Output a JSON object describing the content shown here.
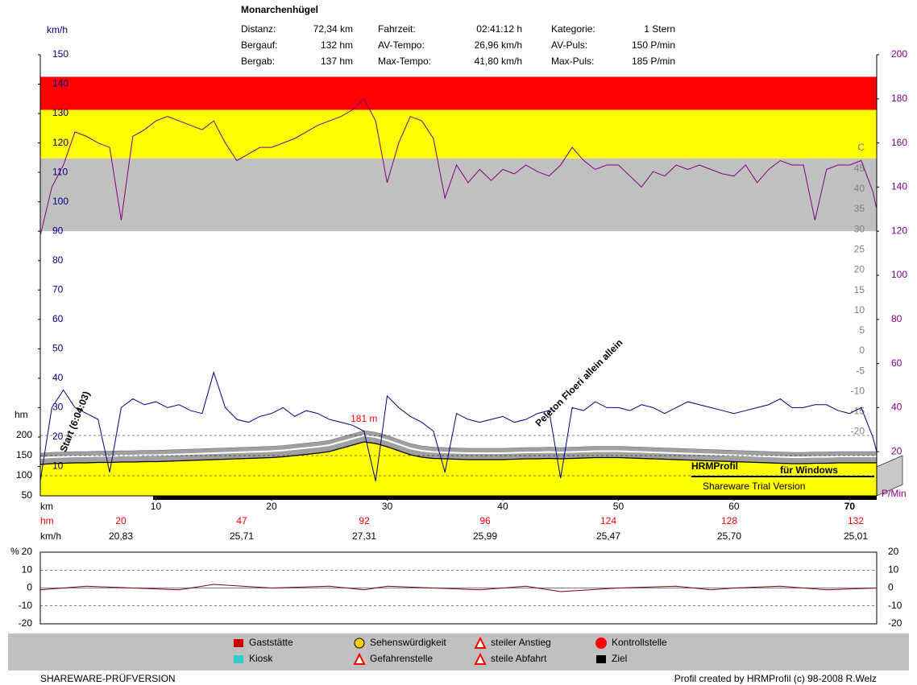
{
  "chart_data": [
    {
      "type": "line",
      "title": "Monarchenhügel",
      "stats": [
        {
          "label": "Distanz:",
          "value": "72,34 km"
        },
        {
          "label": "Bergauf:",
          "value": "132 hm"
        },
        {
          "label": "Bergab:",
          "value": "137 hm"
        },
        {
          "label": "Fahrzeit:",
          "value": "02:41:12 h"
        },
        {
          "label": "AV-Tempo:",
          "value": "26,96 km/h"
        },
        {
          "label": "Max-Tempo:",
          "value": "41,80 km/h"
        },
        {
          "label": "Kategorie:",
          "value": "1 Stern"
        },
        {
          "label": "AV-Puls:",
          "value": "150 P/min"
        },
        {
          "label": "Max-Puls:",
          "value": "185 P/min"
        }
      ],
      "xlabel": "km",
      "xlim": [
        0,
        72.34
      ],
      "xticks": [
        10,
        20,
        30,
        40,
        50,
        60,
        70
      ],
      "ylabel": "km/h",
      "ylim": [
        0,
        150
      ],
      "yticks": [
        10,
        20,
        30,
        40,
        50,
        60,
        70,
        80,
        90,
        100,
        110,
        120,
        130,
        140,
        150
      ],
      "y2label": "P/Min",
      "y2lim": [
        0,
        200
      ],
      "y2ticks": [
        20,
        40,
        60,
        80,
        100,
        120,
        140,
        160,
        180,
        200
      ],
      "y3label": "hm",
      "y3lim": [
        50,
        1146
      ],
      "y3ticks": [
        50,
        100,
        150,
        200
      ],
      "y4label": "C",
      "y4lim": [
        -35.8,
        73.2
      ],
      "y4ticks": [
        -20,
        -15,
        -10,
        -5,
        0,
        5,
        10,
        15,
        20,
        25,
        30,
        35,
        40,
        45
      ],
      "zones": [
        {
          "from": 120,
          "to": 153,
          "color": "#c0c0c0"
        },
        {
          "from": 153,
          "to": 175,
          "color": "#ffff00"
        },
        {
          "from": 175,
          "to": 190,
          "color": "#ff0000"
        }
      ],
      "x": [
        0,
        1,
        2,
        3,
        4,
        5,
        6,
        7,
        8,
        9,
        10,
        11,
        12,
        13,
        14,
        15,
        16,
        17,
        18,
        19,
        20,
        21,
        22,
        23,
        24,
        25,
        26,
        27,
        28,
        29,
        30,
        31,
        32,
        33,
        34,
        35,
        36,
        37,
        38,
        39,
        40,
        41,
        42,
        43,
        44,
        45,
        46,
        47,
        48,
        49,
        50,
        51,
        52,
        53,
        54,
        55,
        56,
        57,
        58,
        59,
        60,
        61,
        62,
        63,
        64,
        65,
        66,
        67,
        68,
        69,
        70,
        71,
        72,
        72.34
      ],
      "series": [
        {
          "color": "#000080",
          "axis": "y",
          "values": [
            5,
            30,
            36,
            30,
            28,
            26,
            8,
            30,
            33,
            31,
            32,
            30,
            31,
            29,
            28,
            42,
            30,
            26,
            25,
            27,
            28,
            30,
            27,
            29,
            28,
            26,
            25,
            24,
            22,
            5,
            34,
            30,
            27,
            25,
            22,
            8,
            28,
            26,
            25,
            26,
            27,
            25,
            26,
            28,
            29,
            6,
            30,
            29,
            32,
            30,
            30,
            29,
            31,
            30,
            28,
            30,
            32,
            31,
            30,
            29,
            28,
            29,
            30,
            31,
            33,
            30,
            30,
            31,
            31,
            29,
            28,
            30,
            20,
            15
          ]
        },
        {
          "color": "#800080",
          "axis": "y2",
          "values": [
            118,
            140,
            150,
            165,
            163,
            160,
            158,
            125,
            163,
            166,
            170,
            172,
            170,
            168,
            166,
            170,
            160,
            152,
            155,
            158,
            158,
            160,
            162,
            165,
            168,
            170,
            172,
            175,
            180,
            170,
            142,
            160,
            172,
            170,
            162,
            135,
            150,
            142,
            148,
            143,
            148,
            146,
            150,
            147,
            145,
            150,
            158,
            152,
            148,
            150,
            150,
            145,
            140,
            147,
            145,
            150,
            148,
            150,
            148,
            146,
            145,
            150,
            142,
            148,
            152,
            150,
            150,
            125,
            148,
            150,
            150,
            152,
            138,
            130
          ]
        },
        {
          "color": "#000000",
          "axis": "y3",
          "values": [
            128,
            130,
            131,
            132,
            132,
            133,
            133,
            134,
            134,
            135,
            135,
            136,
            137,
            138,
            139,
            140,
            141,
            142,
            143,
            144,
            145,
            147,
            150,
            153,
            156,
            160,
            168,
            176,
            184,
            180,
            172,
            162,
            152,
            146,
            143,
            142,
            141,
            140,
            140,
            140,
            140,
            141,
            142,
            142,
            143,
            142,
            143,
            144,
            145,
            145,
            145,
            144,
            143,
            142,
            141,
            140,
            139,
            138,
            137,
            136,
            135,
            134,
            133,
            132,
            131,
            130,
            130,
            131,
            131,
            132,
            132,
            132,
            132,
            132
          ]
        }
      ],
      "annotations": [
        "Start (6:04:03)",
        "Peleton Floeri allein allein",
        "181 m"
      ],
      "summary": {
        "hm_label": "hm",
        "kmh_label": "km/h",
        "hm": [
          "20",
          "47",
          "92",
          "96",
          "124",
          "128",
          "132"
        ],
        "kmh": [
          "20,83",
          "25,71",
          "27,31",
          "25,99",
          "25,47",
          "25,70",
          "25,01"
        ]
      },
      "logo": {
        "name": "HRMProfil",
        "sub": "für Windows",
        "trial": "Shareware Trial  Version"
      }
    },
    {
      "type": "line",
      "ylabel": "%",
      "ylim": [
        -20,
        20
      ],
      "yticks": [
        -20,
        -10,
        0,
        10,
        20
      ],
      "xlim": [
        0,
        72.34
      ],
      "x": [
        0,
        4,
        8,
        12,
        15,
        20,
        25,
        28,
        30,
        34,
        38,
        42,
        45,
        50,
        55,
        58,
        60,
        64,
        68,
        72.34
      ],
      "series": [
        {
          "color": "#800000",
          "values": [
            -1,
            1,
            0,
            -1,
            2,
            0,
            1,
            -1,
            1,
            0,
            -1,
            1,
            -2,
            0,
            1,
            -1,
            0,
            1,
            -1,
            0
          ]
        }
      ]
    }
  ],
  "legend": [
    "Gaststätte",
    "Kiosk",
    "Sehenswürdigkeit",
    "Gefahrenstelle",
    "steiler Anstieg",
    "steile Abfahrt",
    "Kontrollstelle",
    "Ziel"
  ],
  "footer": {
    "left": "SHAREWARE-PRÜFVERSION",
    "right": "Profil created by HRMProfil (c) 98-2008 R.Welz"
  }
}
